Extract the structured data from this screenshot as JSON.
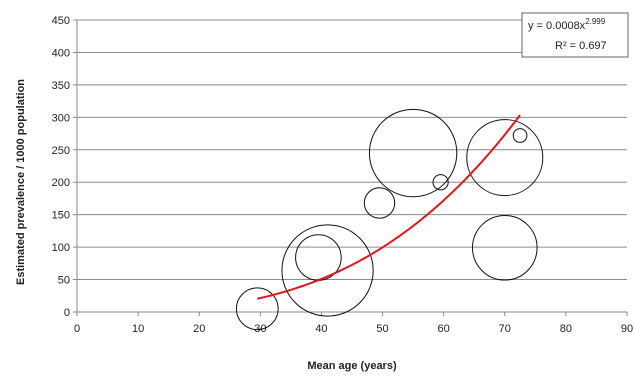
{
  "chart_data": {
    "type": "scatter",
    "variant": "bubble",
    "title": "",
    "xlabel": "Mean age (years)",
    "ylabel": "Estimated prevalence / 1000 population",
    "xlim": [
      0,
      90
    ],
    "ylim": [
      0,
      450
    ],
    "x_ticks": [
      0,
      10,
      20,
      30,
      40,
      50,
      60,
      70,
      80,
      90
    ],
    "y_ticks": [
      0,
      50,
      100,
      150,
      200,
      250,
      300,
      350,
      400,
      450
    ],
    "grid": "horizontal",
    "legend": "none",
    "bubbles": [
      {
        "x": 29.5,
        "y": 5,
        "size": 5.5
      },
      {
        "x": 39.5,
        "y": 84,
        "size": 6
      },
      {
        "x": 41,
        "y": 64,
        "size": 12
      },
      {
        "x": 49.5,
        "y": 168,
        "size": 4
      },
      {
        "x": 55,
        "y": 245,
        "size": 11.5
      },
      {
        "x": 59.5,
        "y": 200,
        "size": 2
      },
      {
        "x": 70,
        "y": 238,
        "size": 10
      },
      {
        "x": 70,
        "y": 99,
        "size": 8.5
      },
      {
        "x": 72.5,
        "y": 272,
        "size": 1.8
      }
    ],
    "trendline": {
      "type": "power",
      "coefficient": 0.0008,
      "exponent": 2.999,
      "x_range": [
        29.5,
        72.5
      ],
      "color": "#e8141c"
    },
    "annotation": {
      "equation_prefix": "y = 0.0008x",
      "equation_exponent": "2.999",
      "r2_label": "R² = 0.697",
      "position": "top-right"
    }
  }
}
